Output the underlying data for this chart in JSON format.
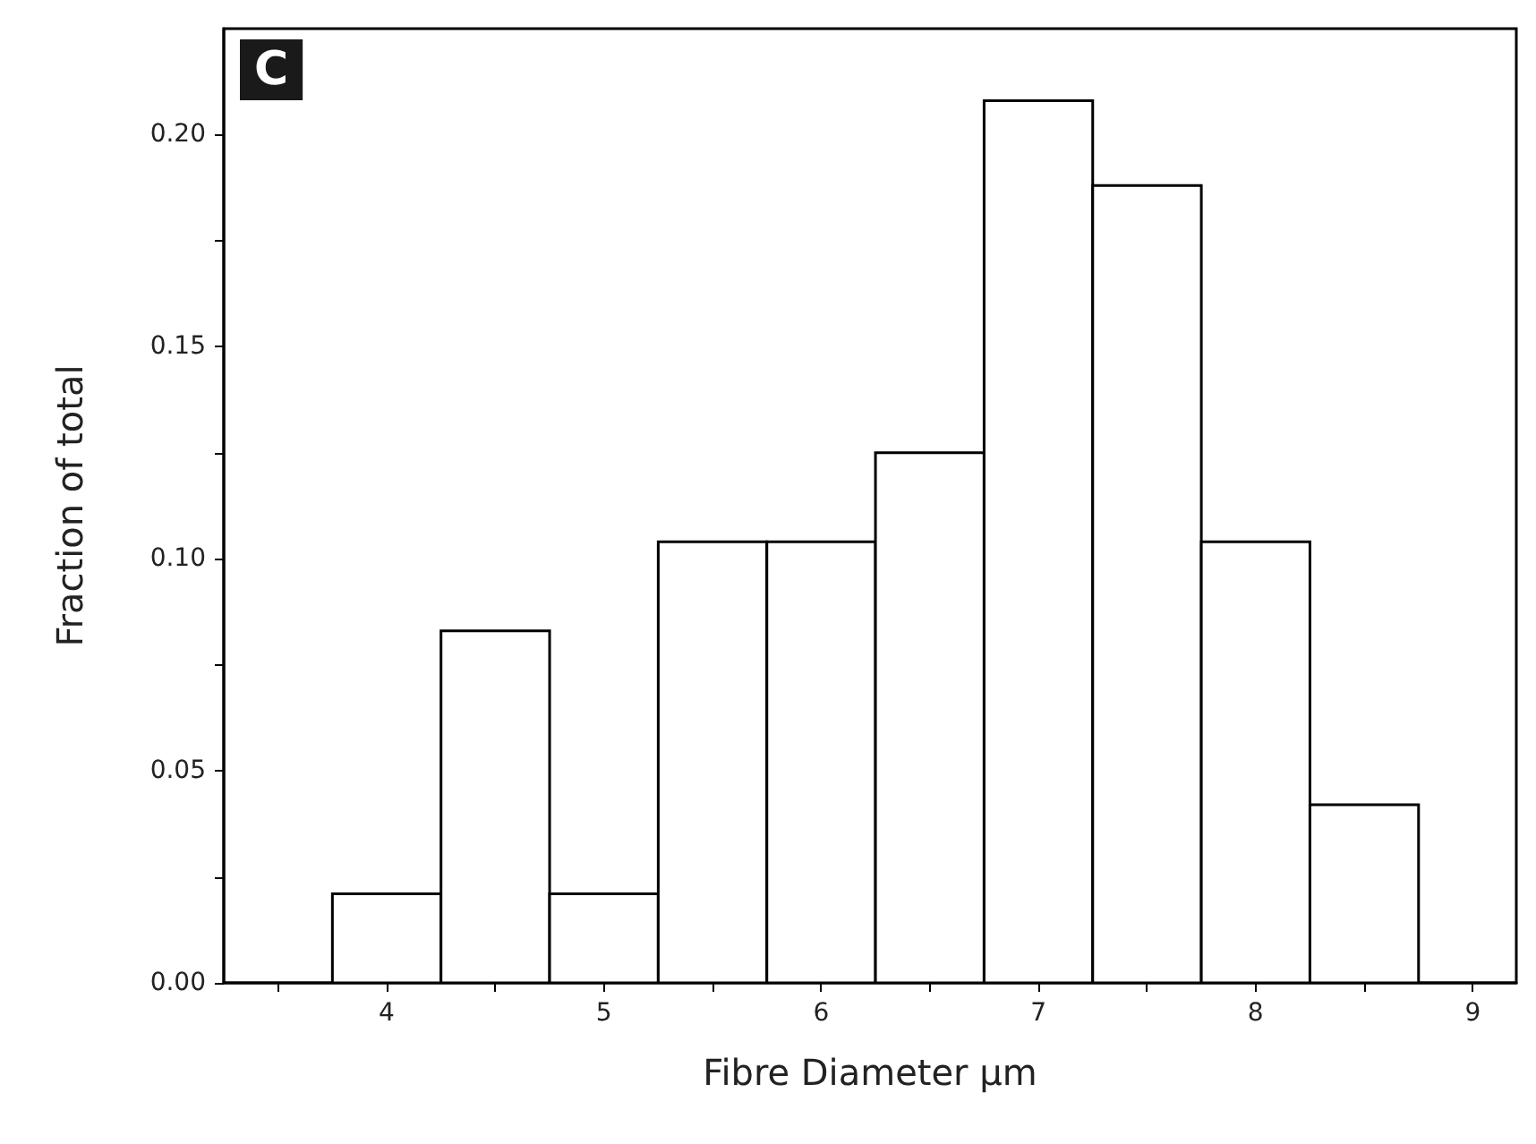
{
  "chart_data": {
    "type": "histogram",
    "xlabel": "Fibre Diameter µm",
    "ylabel": "Fraction of total",
    "annotations": [
      "C"
    ],
    "bins": [
      3.75,
      4.25,
      4.75,
      5.25,
      5.75,
      6.25,
      6.75,
      7.25,
      7.75,
      8.25,
      8.75
    ],
    "values": [
      0.021,
      0.083,
      0.021,
      0.104,
      0.104,
      0.125,
      0.208,
      0.188,
      0.104,
      0.042
    ],
    "color": "#ffffff",
    "xlim": [
      3.25,
      9.2
    ],
    "xticks": [
      {
        "value": 3.5,
        "label": null
      },
      4,
      {
        "value": 4.5,
        "label": null
      },
      5,
      {
        "value": 5.5,
        "label": null
      },
      6,
      {
        "value": 6.5,
        "label": null
      },
      7,
      {
        "value": 7.5,
        "label": null
      },
      8,
      {
        "value": 8.5,
        "label": null
      },
      9
    ],
    "ylim": [
      0,
      0.225
    ],
    "yticks": [
      {
        "value": 0,
        "label": "0.00"
      },
      {
        "value": 0.025,
        "label": null
      },
      {
        "value": 0.05,
        "label": "0.05"
      },
      {
        "value": 0.075,
        "label": null
      },
      {
        "value": 0.1,
        "label": "0.10"
      },
      {
        "value": 0.125,
        "label": null
      },
      {
        "value": 0.15,
        "label": "0.15"
      },
      {
        "value": 0.175,
        "label": null
      },
      {
        "value": 0.2,
        "label": "0.20"
      }
    ],
    "grid": false
  }
}
